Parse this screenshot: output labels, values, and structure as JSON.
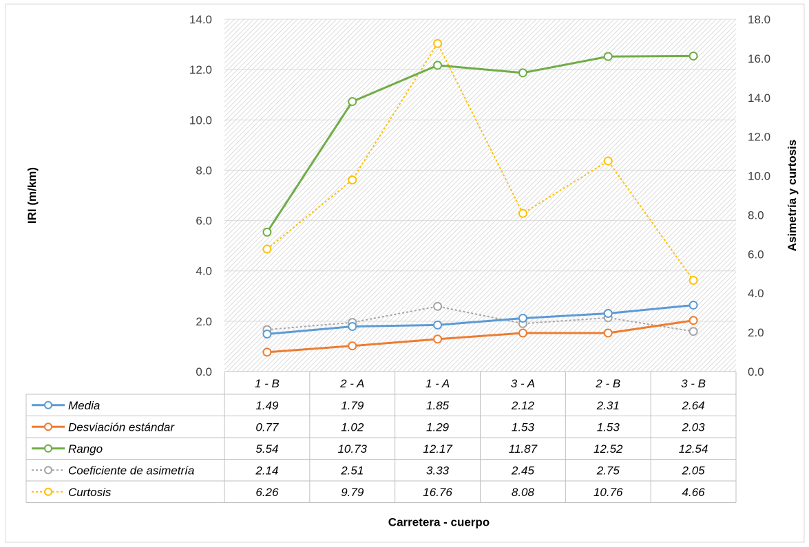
{
  "chart_data": {
    "type": "line",
    "xlabel": "Carretera - cuerpo",
    "ylabel": "IRI (m/km)",
    "y2label": "Asimetría y curtosis",
    "categories": [
      "1 - B",
      "2 - A",
      "1 - A",
      "3 - A",
      "2 - B",
      "3 - B"
    ],
    "ylim": [
      0,
      14
    ],
    "y2lim": [
      0,
      18
    ],
    "yticks": [
      "0.0",
      "2.0",
      "4.0",
      "6.0",
      "8.0",
      "10.0",
      "12.0",
      "14.0"
    ],
    "y2ticks": [
      "0.0",
      "2.0",
      "4.0",
      "6.0",
      "8.0",
      "10.0",
      "12.0",
      "14.0",
      "16.0",
      "18.0"
    ],
    "grid": true,
    "legend": "data-table",
    "series": [
      {
        "name": "Media",
        "axis": "left",
        "color": "#5B9BD5",
        "dashed": false,
        "values": [
          1.49,
          1.79,
          1.85,
          2.12,
          2.31,
          2.64
        ],
        "labels": [
          "1.49",
          "1.79",
          "1.85",
          "2.12",
          "2.31",
          "2.64"
        ]
      },
      {
        "name": "Desviación estándar",
        "axis": "left",
        "color": "#ED7D31",
        "dashed": false,
        "values": [
          0.77,
          1.02,
          1.29,
          1.53,
          1.53,
          2.03
        ],
        "labels": [
          "0.77",
          "1.02",
          "1.29",
          "1.53",
          "1.53",
          "2.03"
        ]
      },
      {
        "name": "Rango",
        "axis": "left",
        "color": "#70AD47",
        "dashed": false,
        "values": [
          5.54,
          10.73,
          12.17,
          11.87,
          12.52,
          12.54
        ],
        "labels": [
          "5.54",
          "10.73",
          "12.17",
          "11.87",
          "12.52",
          "12.54"
        ]
      },
      {
        "name": "Coeficiente de asimetría",
        "axis": "right",
        "color": "#A5A5A5",
        "dashed": true,
        "values": [
          2.14,
          2.51,
          3.33,
          2.45,
          2.75,
          2.05
        ],
        "labels": [
          "2.14",
          "2.51",
          "3.33",
          "2.45",
          "2.75",
          "2.05"
        ]
      },
      {
        "name": "Curtosis",
        "axis": "right",
        "color": "#FFC000",
        "dashed": true,
        "values": [
          6.26,
          9.79,
          16.76,
          8.08,
          10.76,
          4.66
        ],
        "labels": [
          "6.26",
          "9.79",
          "16.76",
          "8.08",
          "10.76",
          "4.66"
        ]
      }
    ]
  }
}
